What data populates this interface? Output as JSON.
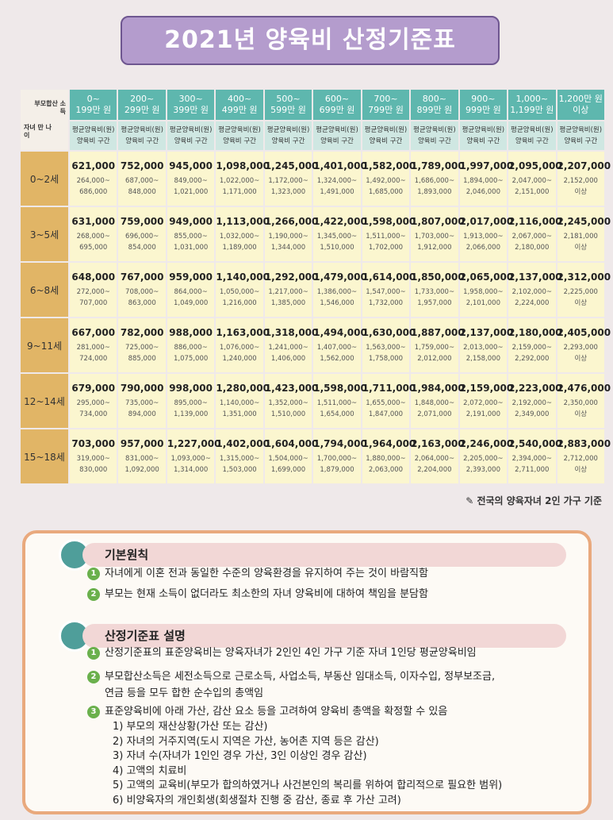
{
  "title": "2021년 양육비 산정기준표",
  "table": {
    "corner_income": "부모합산 소득",
    "corner_age": "자녀 만 나이",
    "columns": [
      [
        "0~",
        "199만 원"
      ],
      [
        "200~",
        "299만 원"
      ],
      [
        "300~",
        "399만 원"
      ],
      [
        "400~",
        "499만 원"
      ],
      [
        "500~",
        "599만 원"
      ],
      [
        "600~",
        "699만 원"
      ],
      [
        "700~",
        "799만 원"
      ],
      [
        "800~",
        "899만 원"
      ],
      [
        "900~",
        "999만 원"
      ],
      [
        "1,000~",
        "1,199만 원"
      ],
      [
        "1,200만 원",
        "이상"
      ]
    ],
    "sub_avg": "평균양육비(원)",
    "sub_range": "양육비 구간",
    "rows": [
      {
        "age": "0~2세",
        "avg": [
          "621,000",
          "752,000",
          "945,000",
          "1,098,000",
          "1,245,000",
          "1,401,000",
          "1,582,000",
          "1,789,000",
          "1,997,000",
          "2,095,000",
          "2,207,000"
        ],
        "range": [
          [
            "264,000~",
            "686,000"
          ],
          [
            "687,000~",
            "848,000"
          ],
          [
            "849,000~",
            "1,021,000"
          ],
          [
            "1,022,000~",
            "1,171,000"
          ],
          [
            "1,172,000~",
            "1,323,000"
          ],
          [
            "1,324,000~",
            "1,491,000"
          ],
          [
            "1,492,000~",
            "1,685,000"
          ],
          [
            "1,686,000~",
            "1,893,000"
          ],
          [
            "1,894,000~",
            "2,046,000"
          ],
          [
            "2,047,000~",
            "2,151,000"
          ],
          [
            "2,152,000",
            "이상"
          ]
        ]
      },
      {
        "age": "3~5세",
        "avg": [
          "631,000",
          "759,000",
          "949,000",
          "1,113,000",
          "1,266,000",
          "1,422,000",
          "1,598,000",
          "1,807,000",
          "2,017,000",
          "2,116,000",
          "2,245,000"
        ],
        "range": [
          [
            "268,000~",
            "695,000"
          ],
          [
            "696,000~",
            "854,000"
          ],
          [
            "855,000~",
            "1,031,000"
          ],
          [
            "1,032,000~",
            "1,189,000"
          ],
          [
            "1,190,000~",
            "1,344,000"
          ],
          [
            "1,345,000~",
            "1,510,000"
          ],
          [
            "1,511,000~",
            "1,702,000"
          ],
          [
            "1,703,000~",
            "1,912,000"
          ],
          [
            "1,913,000~",
            "2,066,000"
          ],
          [
            "2,067,000~",
            "2,180,000"
          ],
          [
            "2,181,000",
            "이상"
          ]
        ]
      },
      {
        "age": "6~8세",
        "avg": [
          "648,000",
          "767,000",
          "959,000",
          "1,140,000",
          "1,292,000",
          "1,479,000",
          "1,614,000",
          "1,850,000",
          "2,065,000",
          "2,137,000",
          "2,312,000"
        ],
        "range": [
          [
            "272,000~",
            "707,000"
          ],
          [
            "708,000~",
            "863,000"
          ],
          [
            "864,000~",
            "1,049,000"
          ],
          [
            "1,050,000~",
            "1,216,000"
          ],
          [
            "1,217,000~",
            "1,385,000"
          ],
          [
            "1,386,000~",
            "1,546,000"
          ],
          [
            "1,547,000~",
            "1,732,000"
          ],
          [
            "1,733,000~",
            "1,957,000"
          ],
          [
            "1,958,000~",
            "2,101,000"
          ],
          [
            "2,102,000~",
            "2,224,000"
          ],
          [
            "2,225,000",
            "이상"
          ]
        ]
      },
      {
        "age": "9~11세",
        "avg": [
          "667,000",
          "782,000",
          "988,000",
          "1,163,000",
          "1,318,000",
          "1,494,000",
          "1,630,000",
          "1,887,000",
          "2,137,000",
          "2,180,000",
          "2,405,000"
        ],
        "range": [
          [
            "281,000~",
            "724,000"
          ],
          [
            "725,000~",
            "885,000"
          ],
          [
            "886,000~",
            "1,075,000"
          ],
          [
            "1,076,000~",
            "1,240,000"
          ],
          [
            "1,241,000~",
            "1,406,000"
          ],
          [
            "1,407,000~",
            "1,562,000"
          ],
          [
            "1,563,000~",
            "1,758,000"
          ],
          [
            "1,759,000~",
            "2,012,000"
          ],
          [
            "2,013,000~",
            "2,158,000"
          ],
          [
            "2,159,000~",
            "2,292,000"
          ],
          [
            "2,293,000",
            "이상"
          ]
        ]
      },
      {
        "age": "12~14세",
        "avg": [
          "679,000",
          "790,000",
          "998,000",
          "1,280,000",
          "1,423,000",
          "1,598,000",
          "1,711,000",
          "1,984,000",
          "2,159,000",
          "2,223,000",
          "2,476,000"
        ],
        "range": [
          [
            "295,000~",
            "734,000"
          ],
          [
            "735,000~",
            "894,000"
          ],
          [
            "895,000~",
            "1,139,000"
          ],
          [
            "1,140,000~",
            "1,351,000"
          ],
          [
            "1,352,000~",
            "1,510,000"
          ],
          [
            "1,511,000~",
            "1,654,000"
          ],
          [
            "1,655,000~",
            "1,847,000"
          ],
          [
            "1,848,000~",
            "2,071,000"
          ],
          [
            "2,072,000~",
            "2,191,000"
          ],
          [
            "2,192,000~",
            "2,349,000"
          ],
          [
            "2,350,000",
            "이상"
          ]
        ]
      },
      {
        "age": "15~18세",
        "avg": [
          "703,000",
          "957,000",
          "1,227,000",
          "1,402,000",
          "1,604,000",
          "1,794,000",
          "1,964,000",
          "2,163,000",
          "2,246,000",
          "2,540,000",
          "2,883,000"
        ],
        "range": [
          [
            "319,000~",
            "830,000"
          ],
          [
            "831,000~",
            "1,092,000"
          ],
          [
            "1,093,000~",
            "1,314,000"
          ],
          [
            "1,315,000~",
            "1,503,000"
          ],
          [
            "1,504,000~",
            "1,699,000"
          ],
          [
            "1,700,000~",
            "1,879,000"
          ],
          [
            "1,880,000~",
            "2,063,000"
          ],
          [
            "2,064,000~",
            "2,204,000"
          ],
          [
            "2,205,000~",
            "2,393,000"
          ],
          [
            "2,394,000~",
            "2,711,000"
          ],
          [
            "2,712,000",
            "이상"
          ]
        ]
      }
    ],
    "note": "전국의 양육자녀 2인 가구 기준"
  },
  "sections": [
    {
      "heading": "기본원칙",
      "items": [
        {
          "num": "1",
          "lines": [
            "자녀에게 이혼 전과 동일한 수준의 양육환경을 유지하여 주는 것이 바람직함"
          ]
        },
        {
          "num": "2",
          "lines": [
            "부모는 현재 소득이 없더라도 최소한의 자녀 양육비에 대하여 책임을 분담함"
          ]
        }
      ]
    },
    {
      "heading": "산정기준표 설명",
      "items": [
        {
          "num": "1",
          "lines": [
            "산정기준표의 표준양육비는 양육자녀가 2인인 4인 가구 기준 자녀 1인당 평균양육비임"
          ]
        },
        {
          "num": "2",
          "lines": [
            "부모합산소득은 세전소득으로 근로소득, 사업소득, 부동산 임대소득, 이자수입, 정부보조금,",
            "연금 등을 모두 합한 순수입의 총액임"
          ]
        },
        {
          "num": "3",
          "lines": [
            "표준양육비에 아래 가산, 감산 요소 등을 고려하여 양육비 총액을 확정할 수 있음",
            "1) 부모의 재산상황(가산 또는 감산)",
            "2) 자녀의 거주지역(도시 지역은 가산, 농어촌 지역 등은 감산)",
            "3) 자녀 수(자녀가 1인인 경우 가산, 3인 이상인 경우 감산)",
            "4) 고액의 치료비",
            "5) 고액의 교육비(부모가 합의하였거나 사건본인의 복리를 위하여 합리적으로 필요한 범위)",
            "6) 비양육자의 개인회생(회생절차 진행 중 감산, 종료 후 가산 고려)"
          ]
        }
      ]
    }
  ]
}
